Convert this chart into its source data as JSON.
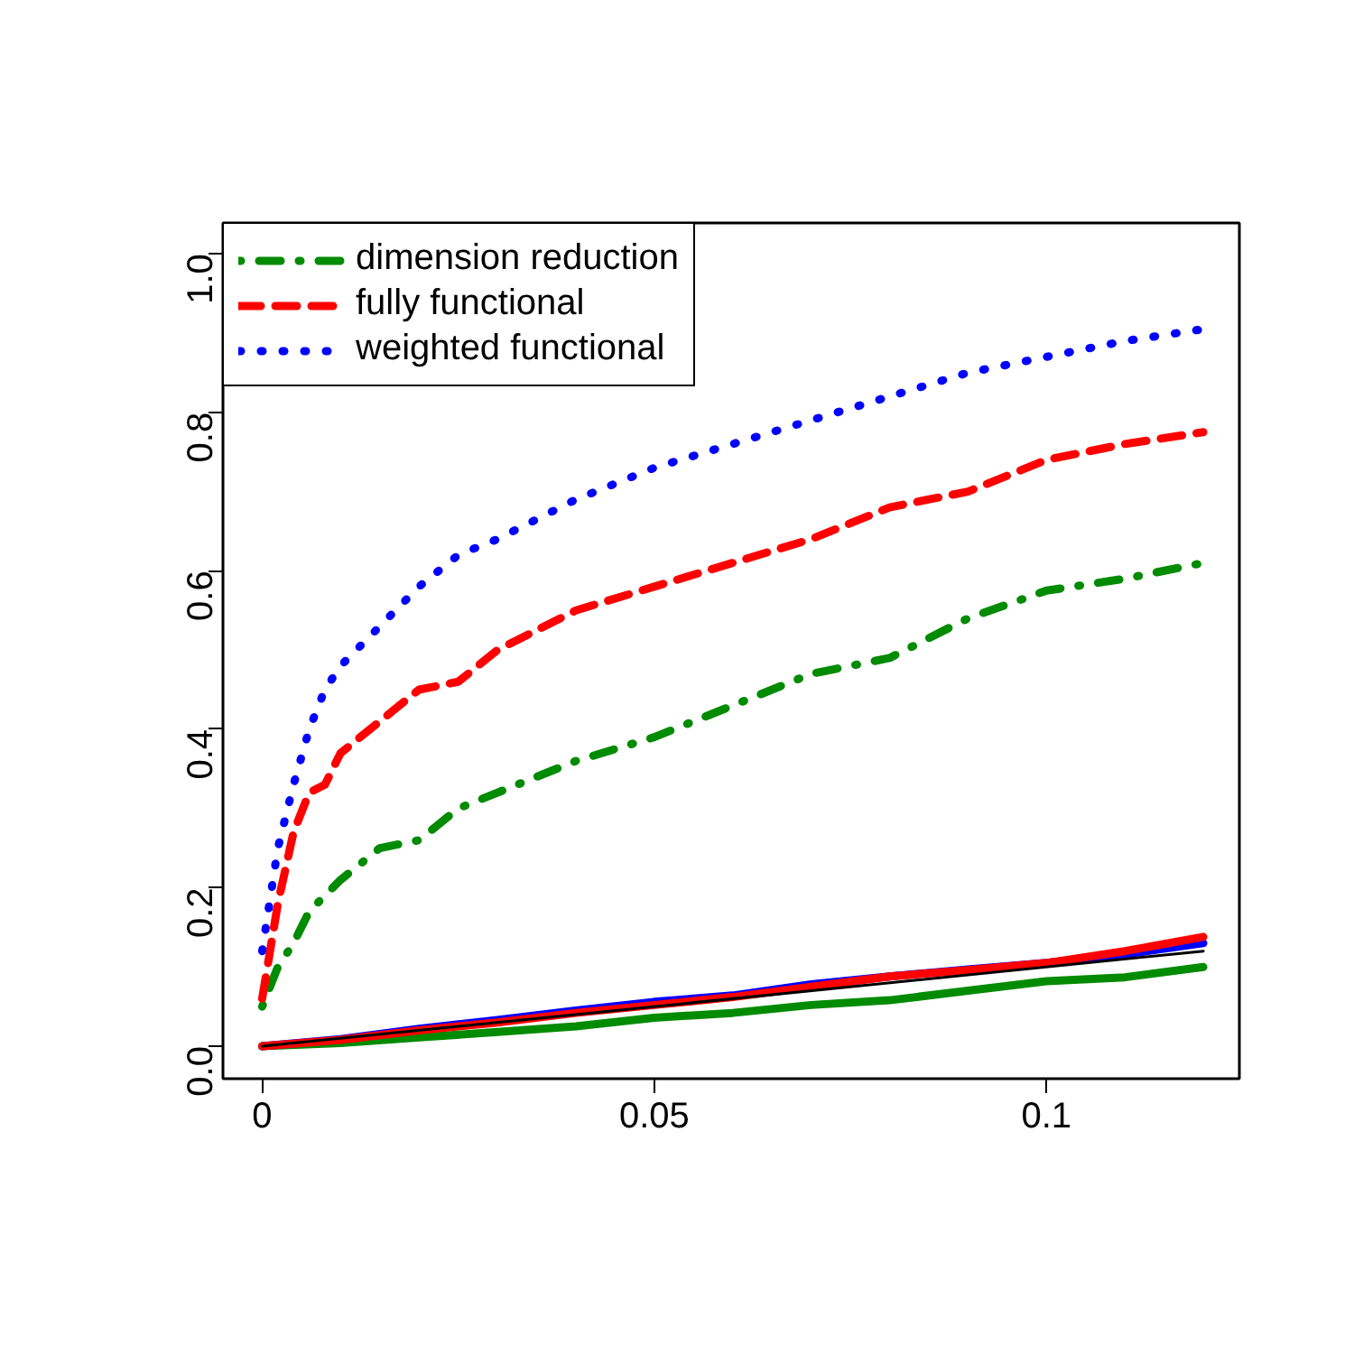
{
  "chart_data": {
    "type": "line",
    "xlim": [
      -0.005,
      0.1246
    ],
    "ylim": [
      -0.041,
      1.039
    ],
    "xticks": [
      0,
      0.05,
      0.1
    ],
    "yticks": [
      {
        "value": 0,
        "label": "0.0"
      },
      {
        "value": 0.2,
        "label": "0.2"
      },
      {
        "value": 0.4,
        "label": "0.4"
      },
      {
        "value": 0.6,
        "label": "0.6"
      },
      {
        "value": 0.8,
        "label": "0.8"
      },
      {
        "value": 1,
        "label": "1.0"
      }
    ],
    "grid": false,
    "legend": "top left",
    "marker": "none",
    "series": [
      {
        "name": "dimension reduction",
        "color": "#008b00",
        "line_style": "dashdot",
        "x": [
          0,
          0.002,
          0.004,
          0.006,
          0.008,
          0.01,
          0.015,
          0.02,
          0.025,
          0.03,
          0.04,
          0.05,
          0.06,
          0.07,
          0.08,
          0.09,
          0.1,
          0.11,
          0.12
        ],
        "values": [
          0.05,
          0.1,
          0.13,
          0.17,
          0.19,
          0.21,
          0.25,
          0.26,
          0.3,
          0.32,
          0.36,
          0.39,
          0.43,
          0.47,
          0.49,
          0.54,
          0.575,
          0.59,
          0.61
        ]
      },
      {
        "name": "fully functional",
        "color": "#ff0000",
        "line_style": "dashed",
        "x": [
          0,
          0.002,
          0.004,
          0.006,
          0.008,
          0.01,
          0.015,
          0.02,
          0.025,
          0.03,
          0.04,
          0.05,
          0.06,
          0.07,
          0.08,
          0.09,
          0.1,
          0.11,
          0.12
        ],
        "values": [
          0.06,
          0.18,
          0.27,
          0.32,
          0.33,
          0.37,
          0.41,
          0.45,
          0.46,
          0.5,
          0.55,
          0.58,
          0.61,
          0.64,
          0.68,
          0.7,
          0.74,
          0.76,
          0.775
        ]
      },
      {
        "name": "weighted functional",
        "color": "#0000ff",
        "line_style": "dotted",
        "x": [
          0,
          0.002,
          0.004,
          0.006,
          0.008,
          0.01,
          0.015,
          0.02,
          0.025,
          0.03,
          0.04,
          0.05,
          0.06,
          0.07,
          0.08,
          0.09,
          0.1,
          0.11,
          0.12
        ],
        "values": [
          0.12,
          0.25,
          0.33,
          0.4,
          0.45,
          0.48,
          0.53,
          0.58,
          0.62,
          0.64,
          0.69,
          0.73,
          0.76,
          0.79,
          0.82,
          0.85,
          0.87,
          0.89,
          0.905
        ]
      },
      {
        "color": "#008b00",
        "line_style": "solid",
        "x": [
          0,
          0.01,
          0.02,
          0.03,
          0.04,
          0.05,
          0.06,
          0.07,
          0.08,
          0.09,
          0.1,
          0.11,
          0.12
        ],
        "values": [
          0,
          0.004,
          0.011,
          0.018,
          0.025,
          0.036,
          0.042,
          0.052,
          0.058,
          0.07,
          0.082,
          0.087,
          0.1
        ]
      },
      {
        "color": "#0000ff",
        "line_style": "solid",
        "x": [
          0,
          0.01,
          0.02,
          0.03,
          0.04,
          0.05,
          0.06,
          0.07,
          0.08,
          0.09,
          0.1,
          0.11,
          0.12
        ],
        "values": [
          0,
          0.009,
          0.022,
          0.033,
          0.045,
          0.056,
          0.064,
          0.078,
          0.088,
          0.097,
          0.105,
          0.116,
          0.13
        ]
      },
      {
        "color": "#ff0000",
        "line_style": "solid",
        "x": [
          0,
          0.01,
          0.02,
          0.03,
          0.04,
          0.05,
          0.06,
          0.07,
          0.08,
          0.09,
          0.1,
          0.11,
          0.12
        ],
        "values": [
          0,
          0.008,
          0.02,
          0.03,
          0.042,
          0.052,
          0.062,
          0.075,
          0.088,
          0.096,
          0.105,
          0.12,
          0.138
        ]
      },
      {
        "color": "#000000",
        "line_style": "solid",
        "x": [
          0,
          0.12
        ],
        "values": [
          0,
          0.12
        ]
      }
    ]
  }
}
